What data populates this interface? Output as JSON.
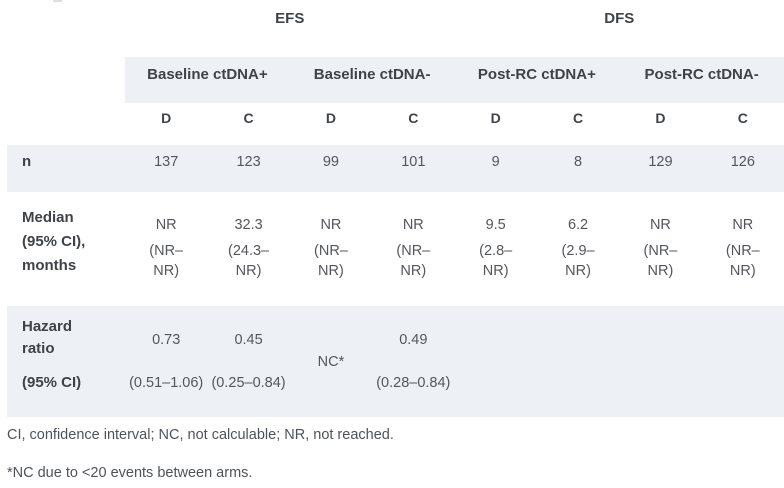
{
  "colors": {
    "band": "#edf1f6",
    "header_text": "#3f4347",
    "value_text": "#53565b",
    "footnote_text": "#4f5358"
  },
  "table": {
    "section_headers": [
      "EFS",
      "DFS"
    ],
    "group_headers": [
      "Baseline ctDNA+",
      "Baseline ctDNA-",
      "Post-RC ctDNA+",
      "Post-RC ctDNA-"
    ],
    "arm_headers": [
      "D",
      "C",
      "D",
      "C",
      "D",
      "C",
      "D",
      "C"
    ],
    "n_row": {
      "label": "n",
      "values": [
        "137",
        "123",
        "99",
        "101",
        "9",
        "8",
        "129",
        "126"
      ]
    },
    "median_row": {
      "label_lines": [
        "Median",
        "(95% CI),",
        "months"
      ],
      "cells": [
        {
          "value": "NR",
          "ci": "(NR–NR)"
        },
        {
          "value": "32.3",
          "ci": "(24.3–NR)"
        },
        {
          "value": "NR",
          "ci": "(NR–NR)"
        },
        {
          "value": "NR",
          "ci": "(NR–NR)"
        },
        {
          "value": "9.5",
          "ci": "(2.8–NR)"
        },
        {
          "value": "6.2",
          "ci": "(2.9–NR)"
        },
        {
          "value": "NR",
          "ci": "(NR–NR)"
        },
        {
          "value": "NR",
          "ci": "(NR–NR)"
        }
      ]
    },
    "hazard_row": {
      "label_lines": [
        "Hazard ratio",
        "(95% CI)"
      ],
      "cells": [
        {
          "value": "0.73",
          "ci": "(0.51–1.06)"
        },
        {
          "value": "0.45",
          "ci": "(0.25–0.84)"
        },
        {
          "value": "NC*",
          "ci": ""
        },
        {
          "value": "0.49",
          "ci": "(0.28–0.84)"
        }
      ]
    }
  },
  "footnotes": [
    "CI, confidence interval; NC, not calculable; NR, not reached.",
    "*NC due to <20 events between arms."
  ]
}
